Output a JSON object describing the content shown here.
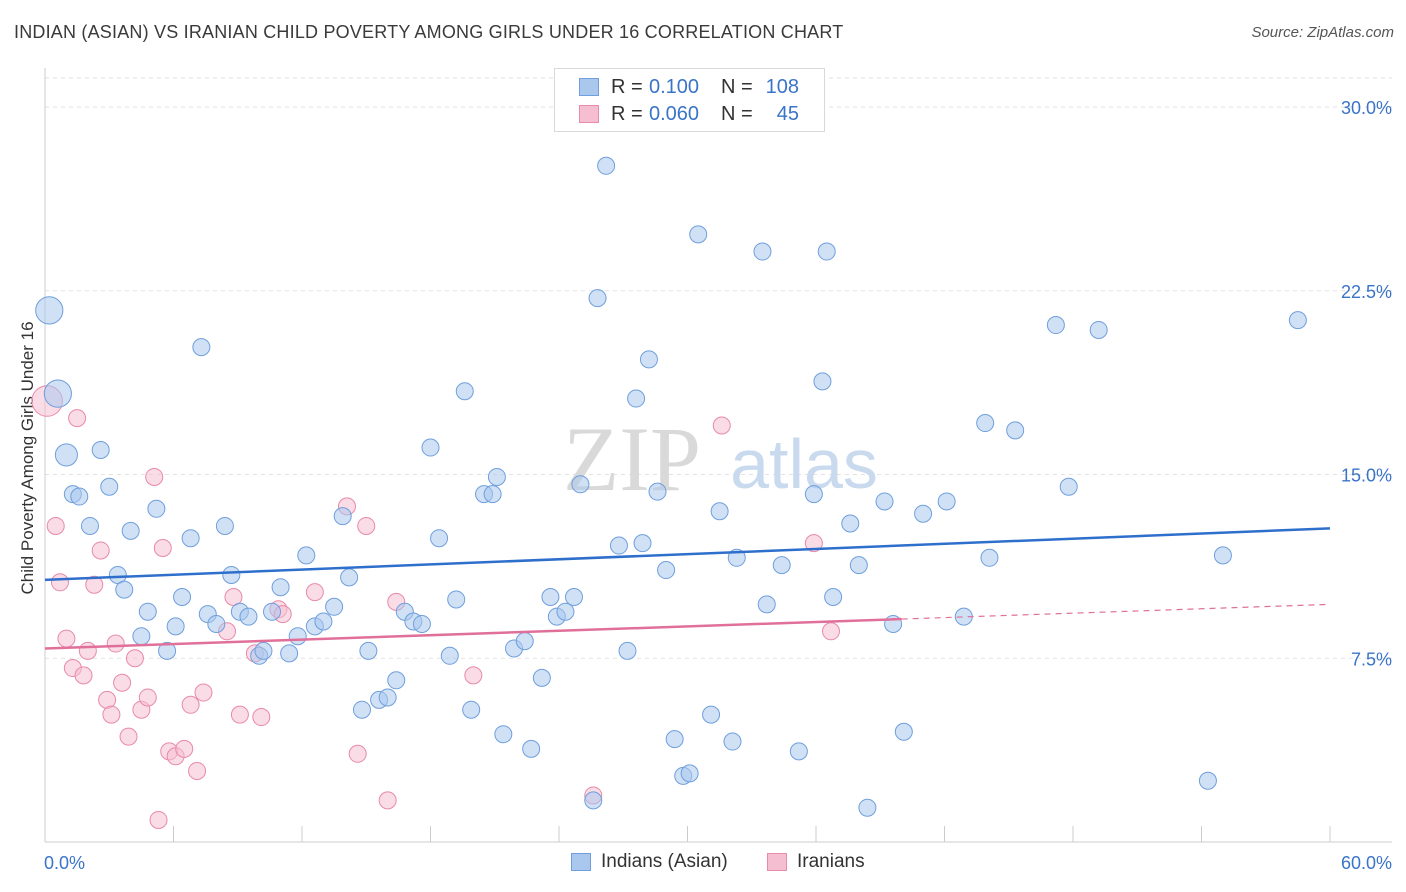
{
  "header": {
    "title": "INDIAN (ASIAN) VS IRANIAN CHILD POVERTY AMONG GIRLS UNDER 16 CORRELATION CHART",
    "source": "Source: ZipAtlas.com"
  },
  "watermark": {
    "zip": "ZIP",
    "atlas": "atlas"
  },
  "legend": {
    "indian": {
      "r_label": "R =",
      "r_value": "0.100",
      "n_label": "N =",
      "n_value": "108"
    },
    "iranian": {
      "r_label": "R =",
      "r_value": "0.060",
      "n_label": "N =",
      "n_value": "45"
    }
  },
  "bottom_legend": {
    "indian": "Indians (Asian)",
    "iranian": "Iranians"
  },
  "colors": {
    "indian_fill": "#aac8ee",
    "indian_stroke": "#6f9fdc",
    "indian_line": "#2f6fcc",
    "iranian_fill": "#f6bfd1",
    "iranian_stroke": "#e88aa9",
    "iranian_line": "#e0709a",
    "tick_label": "#3a74c8",
    "grid": "#e2e2e2"
  },
  "chart_data": {
    "type": "scatter",
    "title": "INDIAN (ASIAN) VS IRANIAN CHILD POVERTY AMONG GIRLS UNDER 16 CORRELATION CHART",
    "xlabel": "",
    "ylabel": "Child Poverty Among Girls Under 16",
    "xlim": [
      0,
      60
    ],
    "ylim": [
      0,
      32
    ],
    "x_tick_labels": [
      "0.0%",
      "60.0%"
    ],
    "y_ticks": [
      7.5,
      15.0,
      22.5,
      30.0
    ],
    "y_tick_labels": [
      "7.5%",
      "15.0%",
      "22.5%",
      "30.0%"
    ],
    "grid": true,
    "legend_placement": "top-center",
    "series": [
      {
        "name": "Indians (Asian)",
        "R": 0.1,
        "N": 108,
        "trend": {
          "x": [
            0,
            60
          ],
          "y": [
            10.7,
            12.8
          ]
        },
        "points": [
          [
            0.2,
            21.7,
            1.6
          ],
          [
            0.6,
            18.3,
            1.6
          ],
          [
            1.0,
            15.8,
            1.3
          ],
          [
            1.3,
            14.2,
            1.0
          ],
          [
            1.6,
            14.1,
            1.0
          ],
          [
            2.1,
            12.9,
            1.0
          ],
          [
            2.6,
            16.0,
            1.0
          ],
          [
            3.0,
            14.5,
            1.0
          ],
          [
            3.4,
            10.9,
            1.0
          ],
          [
            3.7,
            10.3,
            1.0
          ],
          [
            4.0,
            12.7,
            1.0
          ],
          [
            4.5,
            8.4,
            1.0
          ],
          [
            4.8,
            9.4,
            1.0
          ],
          [
            5.2,
            13.6,
            1.0
          ],
          [
            5.7,
            7.8,
            1.0
          ],
          [
            6.1,
            8.8,
            1.0
          ],
          [
            6.4,
            10.0,
            1.0
          ],
          [
            6.8,
            12.4,
            1.0
          ],
          [
            7.3,
            20.2,
            1.0
          ],
          [
            7.6,
            9.3,
            1.0
          ],
          [
            8.0,
            8.9,
            1.0
          ],
          [
            8.4,
            12.9,
            1.0
          ],
          [
            8.7,
            10.9,
            1.0
          ],
          [
            9.1,
            9.4,
            1.0
          ],
          [
            9.5,
            9.2,
            1.0
          ],
          [
            10.0,
            7.6,
            1.0
          ],
          [
            10.2,
            7.8,
            1.0
          ],
          [
            10.6,
            9.4,
            1.0
          ],
          [
            11.0,
            10.4,
            1.0
          ],
          [
            11.4,
            7.7,
            1.0
          ],
          [
            11.8,
            8.4,
            1.0
          ],
          [
            12.2,
            11.7,
            1.0
          ],
          [
            12.6,
            8.8,
            1.0
          ],
          [
            13.0,
            9.0,
            1.0
          ],
          [
            13.5,
            9.6,
            1.0
          ],
          [
            13.9,
            13.3,
            1.0
          ],
          [
            14.2,
            10.8,
            1.0
          ],
          [
            14.8,
            5.4,
            1.0
          ],
          [
            15.1,
            7.8,
            1.0
          ],
          [
            15.6,
            5.8,
            1.0
          ],
          [
            16.0,
            5.9,
            1.0
          ],
          [
            16.4,
            6.6,
            1.0
          ],
          [
            16.8,
            9.4,
            1.0
          ],
          [
            17.2,
            9.0,
            1.0
          ],
          [
            17.6,
            8.9,
            1.0
          ],
          [
            18.0,
            16.1,
            1.0
          ],
          [
            18.4,
            12.4,
            1.0
          ],
          [
            18.9,
            7.6,
            1.0
          ],
          [
            19.2,
            9.9,
            1.0
          ],
          [
            19.6,
            18.4,
            1.0
          ],
          [
            19.9,
            5.4,
            1.0
          ],
          [
            20.5,
            14.2,
            1.0
          ],
          [
            20.9,
            14.2,
            1.0
          ],
          [
            21.1,
            14.9,
            1.0
          ],
          [
            21.4,
            4.4,
            1.0
          ],
          [
            21.9,
            7.9,
            1.0
          ],
          [
            22.4,
            8.2,
            1.0
          ],
          [
            22.7,
            3.8,
            1.0
          ],
          [
            23.2,
            6.7,
            1.0
          ],
          [
            23.6,
            10.0,
            1.0
          ],
          [
            23.9,
            9.2,
            1.0
          ],
          [
            24.3,
            9.4,
            1.0
          ],
          [
            24.7,
            10.0,
            1.0
          ],
          [
            25.0,
            14.6,
            1.0
          ],
          [
            25.6,
            1.7,
            1.0
          ],
          [
            25.8,
            22.2,
            1.0
          ],
          [
            26.2,
            27.6,
            1.0
          ],
          [
            26.8,
            12.1,
            1.0
          ],
          [
            27.2,
            7.8,
            1.0
          ],
          [
            27.6,
            18.1,
            1.0
          ],
          [
            27.9,
            12.2,
            1.0
          ],
          [
            28.2,
            19.7,
            1.0
          ],
          [
            28.6,
            14.3,
            1.0
          ],
          [
            29.0,
            11.1,
            1.0
          ],
          [
            29.4,
            4.2,
            1.0
          ],
          [
            29.8,
            2.7,
            1.0
          ],
          [
            30.1,
            2.8,
            1.0
          ],
          [
            30.5,
            24.8,
            1.0
          ],
          [
            31.1,
            5.2,
            1.0
          ],
          [
            31.5,
            13.5,
            1.0
          ],
          [
            32.1,
            4.1,
            1.0
          ],
          [
            32.3,
            11.6,
            1.0
          ],
          [
            33.5,
            24.1,
            1.0
          ],
          [
            33.7,
            9.7,
            1.0
          ],
          [
            34.4,
            11.3,
            1.0
          ],
          [
            35.2,
            3.7,
            1.0
          ],
          [
            35.9,
            14.2,
            1.0
          ],
          [
            36.3,
            18.8,
            1.0
          ],
          [
            36.5,
            24.1,
            1.0
          ],
          [
            36.8,
            10.0,
            1.0
          ],
          [
            37.6,
            13.0,
            1.0
          ],
          [
            38.0,
            11.3,
            1.0
          ],
          [
            38.4,
            1.4,
            1.0
          ],
          [
            39.2,
            13.9,
            1.0
          ],
          [
            39.6,
            8.9,
            1.0
          ],
          [
            40.1,
            4.5,
            1.0
          ],
          [
            41.0,
            13.4,
            1.0
          ],
          [
            42.1,
            13.9,
            1.0
          ],
          [
            42.9,
            9.2,
            1.0
          ],
          [
            43.9,
            17.1,
            1.0
          ],
          [
            44.1,
            11.6,
            1.0
          ],
          [
            45.3,
            16.8,
            1.0
          ],
          [
            47.2,
            21.1,
            1.0
          ],
          [
            47.8,
            14.5,
            1.0
          ],
          [
            49.2,
            20.9,
            1.0
          ],
          [
            54.3,
            2.5,
            1.0
          ],
          [
            55.0,
            11.7,
            1.0
          ],
          [
            58.5,
            21.3,
            1.0
          ]
        ]
      },
      {
        "name": "Iranians",
        "R": 0.06,
        "N": 45,
        "trend": {
          "x": [
            0,
            40
          ],
          "y": [
            7.9,
            9.1
          ]
        },
        "trend_extension": {
          "x": [
            40,
            60
          ],
          "y": [
            9.1,
            9.7
          ]
        },
        "points": [
          [
            0.1,
            18.0,
            1.8
          ],
          [
            0.5,
            12.9,
            1.0
          ],
          [
            0.7,
            10.6,
            1.0
          ],
          [
            1.0,
            8.3,
            1.0
          ],
          [
            1.3,
            7.1,
            1.0
          ],
          [
            1.5,
            17.3,
            1.0
          ],
          [
            1.8,
            6.8,
            1.0
          ],
          [
            2.0,
            7.8,
            1.0
          ],
          [
            2.3,
            10.5,
            1.0
          ],
          [
            2.6,
            11.9,
            1.0
          ],
          [
            2.9,
            5.8,
            1.0
          ],
          [
            3.1,
            5.2,
            1.0
          ],
          [
            3.3,
            8.1,
            1.0
          ],
          [
            3.6,
            6.5,
            1.0
          ],
          [
            3.9,
            4.3,
            1.0
          ],
          [
            4.2,
            7.5,
            1.0
          ],
          [
            4.5,
            5.4,
            1.0
          ],
          [
            4.8,
            5.9,
            1.0
          ],
          [
            5.1,
            14.9,
            1.0
          ],
          [
            5.3,
            0.9,
            1.0
          ],
          [
            5.5,
            12.0,
            1.0
          ],
          [
            5.8,
            3.7,
            1.0
          ],
          [
            6.1,
            3.5,
            1.0
          ],
          [
            6.5,
            3.8,
            1.0
          ],
          [
            6.8,
            5.6,
            1.0
          ],
          [
            7.1,
            2.9,
            1.0
          ],
          [
            7.4,
            6.1,
            1.0
          ],
          [
            8.5,
            8.6,
            1.0
          ],
          [
            8.8,
            10.0,
            1.0
          ],
          [
            9.1,
            5.2,
            1.0
          ],
          [
            9.8,
            7.7,
            1.0
          ],
          [
            10.1,
            5.1,
            1.0
          ],
          [
            10.9,
            9.5,
            1.0
          ],
          [
            11.1,
            9.3,
            1.0
          ],
          [
            12.6,
            10.2,
            1.0
          ],
          [
            14.1,
            13.7,
            1.0
          ],
          [
            14.6,
            3.6,
            1.0
          ],
          [
            15.0,
            12.9,
            1.0
          ],
          [
            16.0,
            1.7,
            1.0
          ],
          [
            16.4,
            9.8,
            1.0
          ],
          [
            20.0,
            6.8,
            1.0
          ],
          [
            25.6,
            1.9,
            1.0
          ],
          [
            31.6,
            17.0,
            1.0
          ],
          [
            35.9,
            12.2,
            1.0
          ],
          [
            36.7,
            8.6,
            1.0
          ]
        ]
      }
    ]
  }
}
